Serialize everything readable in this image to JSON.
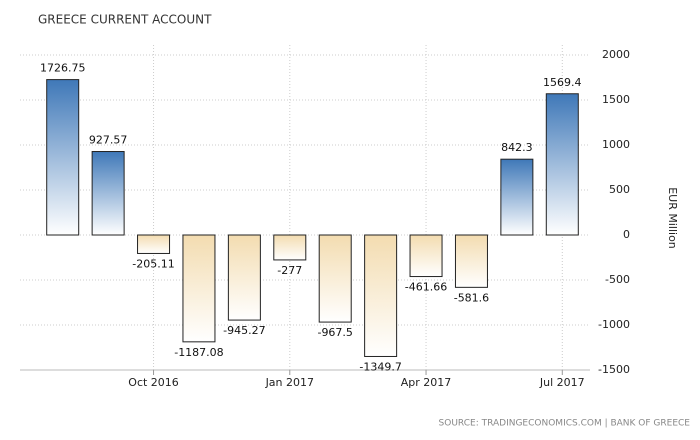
{
  "chart_data": {
    "type": "bar",
    "title": "GREECE CURRENT ACCOUNT",
    "categories": [
      null,
      null,
      "Oct 2016",
      null,
      null,
      "Jan 2017",
      null,
      null,
      "Apr 2017",
      null,
      null,
      "Jul 2017"
    ],
    "values": [
      1726.75,
      927.57,
      -205.11,
      -1187.08,
      -945.27,
      -277,
      -967.5,
      -1349.7,
      -461.66,
      -581.6,
      842.3,
      1569.4
    ],
    "positive_color": "#3f78b8",
    "negative_color": "#f3dcb0",
    "ylim": [
      -1500,
      2000
    ],
    "yticks": [
      -1500,
      -1000,
      -500,
      0,
      500,
      1000,
      1500,
      2000
    ],
    "y_axis_label": "EUR Million",
    "y_axis_side": "right",
    "grid": true,
    "source": "SOURCE: TRADINGECONOMICS.COM | BANK OF GREECE"
  }
}
